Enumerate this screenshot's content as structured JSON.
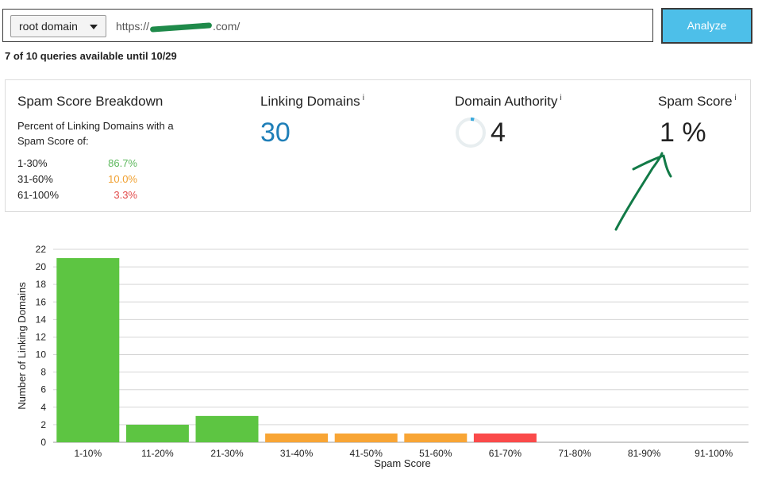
{
  "search": {
    "scope_label": "root domain",
    "url_prefix": "https://",
    "url_suffix": ".com/",
    "analyze_label": "Analyze"
  },
  "quota_text": "7 of 10 queries available until 10/29",
  "breakdown": {
    "title": "Spam Score Breakdown",
    "description": "Percent of Linking Domains with a Spam Score of:",
    "rows": [
      {
        "range": "1-30%",
        "pct": "86.7%",
        "color": "#5cb85c"
      },
      {
        "range": "31-60%",
        "pct": "10.0%",
        "color": "#f0a030"
      },
      {
        "range": "61-100%",
        "pct": "3.3%",
        "color": "#e24a4a"
      }
    ]
  },
  "metrics": {
    "linking_domains": {
      "title": "Linking Domains",
      "info": "i",
      "value": "30"
    },
    "domain_authority": {
      "title": "Domain Authority",
      "info": "i",
      "value": "4",
      "ring_fill": 0.04
    },
    "spam_score": {
      "title": "Spam Score",
      "info": "i",
      "value": "1 %"
    }
  },
  "chart_data": {
    "type": "bar",
    "categories": [
      "1-10%",
      "11-20%",
      "21-30%",
      "31-40%",
      "41-50%",
      "51-60%",
      "61-70%",
      "71-80%",
      "81-90%",
      "91-100%"
    ],
    "values": [
      21,
      2,
      3,
      1,
      1,
      1,
      1,
      0,
      0,
      0
    ],
    "colors": [
      "#5dc542",
      "#5dc542",
      "#5dc542",
      "#f8a535",
      "#f8a535",
      "#f8a535",
      "#fa4a4a",
      "#5dc542",
      "#5dc542",
      "#5dc542"
    ],
    "xlabel": "Spam Score",
    "ylabel": "Number of Linking Domains",
    "ylim": [
      0,
      22
    ],
    "yticks": [
      0,
      2,
      4,
      6,
      8,
      10,
      12,
      14,
      16,
      18,
      20,
      22
    ],
    "grid": true
  }
}
